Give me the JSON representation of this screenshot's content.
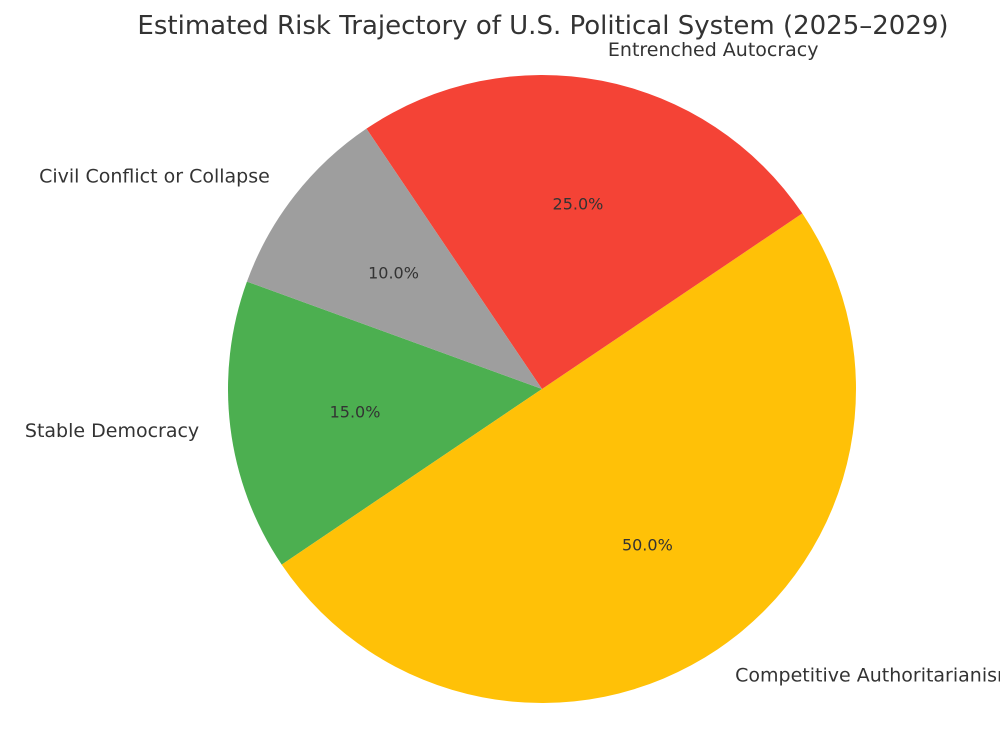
{
  "chart_data": {
    "type": "pie",
    "title": "Estimated Risk Trajectory of U.S. Political System (2025–2029)",
    "start_angle_deg": 160,
    "direction": "counterclockwise",
    "slices": [
      {
        "label": "Stable Democracy",
        "value": 15,
        "pct_label": "15.0%",
        "color": "#4CAF50"
      },
      {
        "label": "Competitive Authoritarianism",
        "value": 50,
        "pct_label": "50.0%",
        "color": "#FFC107"
      },
      {
        "label": "Entrenched Autocracy",
        "value": 25,
        "pct_label": "25.0%",
        "color": "#F44336"
      },
      {
        "label": "Civil Conflict or Collapse",
        "value": 10,
        "pct_label": "10.0%",
        "color": "#9E9E9E"
      }
    ]
  }
}
